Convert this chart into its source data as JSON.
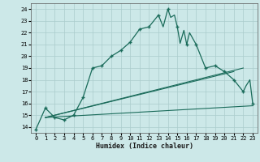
{
  "xlabel": "Humidex (Indice chaleur)",
  "bg_color": "#cce8e8",
  "grid_color": "#aacccc",
  "line_color": "#1a6b5a",
  "xlim": [
    -0.5,
    23.5
  ],
  "ylim": [
    13.5,
    24.5
  ],
  "yticks": [
    14,
    15,
    16,
    17,
    18,
    19,
    20,
    21,
    22,
    23,
    24
  ],
  "xticks": [
    0,
    1,
    2,
    3,
    4,
    5,
    6,
    7,
    8,
    9,
    10,
    11,
    12,
    13,
    14,
    15,
    16,
    17,
    18,
    19,
    20,
    21,
    22,
    23
  ],
  "main_x": [
    0,
    1,
    2,
    3,
    4,
    5,
    6,
    7,
    8,
    9,
    10,
    11,
    12,
    13,
    13.5,
    14,
    14.3,
    14.7,
    15,
    15.3,
    15.7,
    16,
    16.3,
    17,
    18,
    19,
    20,
    21,
    22,
    22.3,
    22.7,
    23
  ],
  "main_y": [
    13.8,
    15.6,
    14.8,
    14.6,
    15.0,
    16.5,
    19.0,
    19.2,
    20.0,
    20.5,
    21.2,
    22.3,
    22.5,
    23.5,
    22.5,
    24.0,
    23.3,
    23.5,
    22.5,
    21.1,
    22.2,
    21.0,
    22.0,
    21.0,
    19.0,
    19.2,
    18.7,
    18.0,
    17.0,
    17.5,
    18.0,
    16.0
  ],
  "main_marker_x": [
    0,
    1,
    2,
    3,
    4,
    5,
    6,
    7,
    8,
    9,
    10,
    11,
    12,
    13,
    14,
    15,
    16,
    17,
    18,
    19,
    20,
    21,
    22,
    23
  ],
  "main_marker_y": [
    13.8,
    15.6,
    14.8,
    14.6,
    15.0,
    16.5,
    19.0,
    19.2,
    20.0,
    20.5,
    21.2,
    22.3,
    22.5,
    23.5,
    24.0,
    22.5,
    21.0,
    21.0,
    19.0,
    19.2,
    18.7,
    18.0,
    17.0,
    16.0
  ],
  "line2_x": [
    1,
    22
  ],
  "line2_y": [
    14.8,
    19.0
  ],
  "line3_x": [
    1,
    21
  ],
  "line3_y": [
    14.8,
    18.7
  ],
  "line4_x": [
    1,
    23
  ],
  "line4_y": [
    14.8,
    15.8
  ]
}
